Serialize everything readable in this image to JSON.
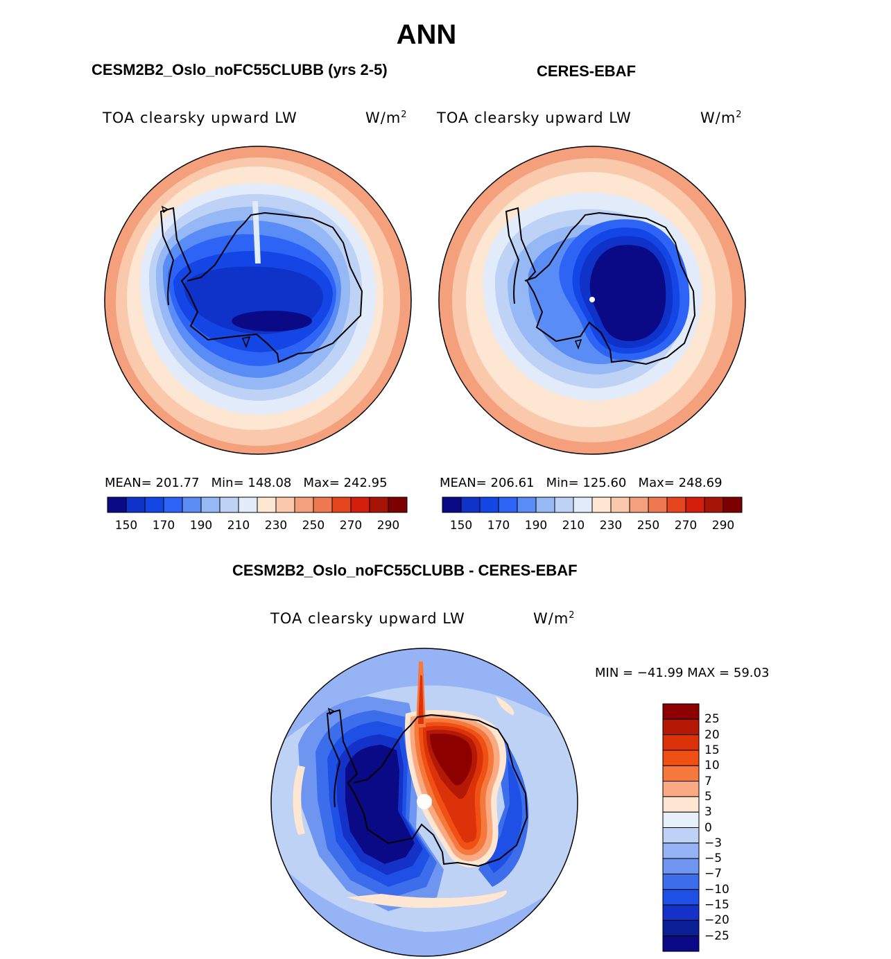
{
  "figure": {
    "title": "ANN",
    "diff_title": "CESM2B2_Oslo_noFC55CLUBB - CERES-EBAF"
  },
  "panels": [
    {
      "title": "CESM2B2_Oslo_noFC55CLUBB (yrs 2-5)",
      "variable": "TOA clearsky upward LW",
      "units_base": "W/m",
      "units_exp": "2",
      "mean_label": "MEAN= 201.77",
      "min_label": "Min= 148.08",
      "max_label": "Max= 242.95"
    },
    {
      "title": "CERES-EBAF",
      "variable": "TOA clearsky upward LW",
      "units_base": "W/m",
      "units_exp": "2",
      "mean_label": "MEAN= 206.61",
      "min_label": "Min= 125.60",
      "max_label": "Max= 248.69"
    }
  ],
  "diff_panel": {
    "variable": "TOA clearsky upward LW",
    "units_base": "W/m",
    "units_exp": "2",
    "minmax_label": "MIN = −41.99 MAX =  59.03"
  },
  "colorbar_main": {
    "colors": [
      "#0a0a87",
      "#0f32c8",
      "#1446e6",
      "#2d64f5",
      "#5a8cf5",
      "#96b9f5",
      "#bed2f5",
      "#e1ebfa",
      "#fde6d2",
      "#fac8aa",
      "#f5a07d",
      "#f07850",
      "#e6461e",
      "#d21e0a",
      "#a51405",
      "#7d0000"
    ],
    "labels": [
      "150",
      "170",
      "190",
      "210",
      "230",
      "250",
      "270",
      "290"
    ]
  },
  "colorbar_diff": {
    "colors": [
      "#8c0000",
      "#b41905",
      "#dc320a",
      "#f05014",
      "#f5783c",
      "#faaa82",
      "#fde6d2",
      "#e6f0fa",
      "#bed2f5",
      "#96b4f5",
      "#6e96f0",
      "#3c6eeb",
      "#1e50e6",
      "#1432c8",
      "#0a1e96",
      "#0a0a87"
    ],
    "labels": [
      "25",
      "20",
      "15",
      "10",
      "7",
      "5",
      "3",
      "0",
      "−3",
      "−5",
      "−7",
      "−10",
      "−15",
      "−20",
      "−25"
    ]
  }
}
